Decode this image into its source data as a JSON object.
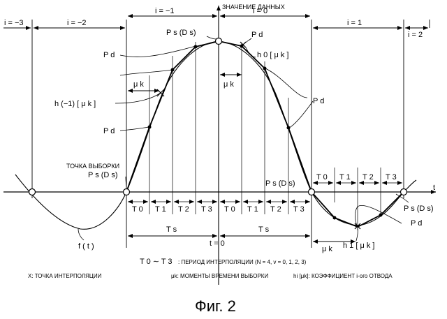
{
  "axis": {
    "y_label": "ЗНАЧЕНИЕ ДАННЫХ",
    "x_label": "t"
  },
  "top_intervals": [
    "i = −3",
    "i = −2",
    "i = −1",
    "i = 0",
    "i = 1",
    "i = 2"
  ],
  "point_labels": {
    "ps_top": "P s (D s)",
    "pd1": "P d",
    "pd2": "P d",
    "pd3": "P d",
    "pd4": "P d",
    "pd5": "P d",
    "h0": "h 0 [ μ k ]",
    "hm1": "h (−1) [ μ k ]",
    "h1": "h 1 [ μ k ]",
    "uk1": "μ k",
    "uk2": "μ k",
    "uk3": "μ k",
    "sample_point_caption": "ТОЧКА ВЫБОРКИ",
    "ps_left": "P s (D s)",
    "ps_mid": "P s (D s)",
    "ps_right": "P s (D s)",
    "ft": "f ( t )"
  },
  "sub_intervals": {
    "row1": [
      "T 0",
      "T 1",
      "T 2",
      "T 3",
      "T 0",
      "T 1",
      "T 2",
      "T 3"
    ],
    "row2": [
      "T 0",
      "T 1",
      "T 2",
      "T 3"
    ]
  },
  "periods": {
    "ts_left": "T s",
    "ts_right": "T s",
    "t_zero": "t = 0"
  },
  "legend": {
    "line1_main": "T 0 ∼ T 3",
    "line1_desc": ": ПЕРИОД ИНТЕРПОЛЯЦИИ (N = 4, v = 0, 1, 2, 3)",
    "x_def": "X: ТОЧКА ИНТЕРПОЛЯЦИИ",
    "uk_def": "μk: МОМЕНТЫ ВРЕМЕНИ ВЫБОРКИ",
    "hi_def": "hi [μk]: КОЭФФИЦИЕНТ i-ого ОТВОДА"
  },
  "caption": "Фиг. 2"
}
